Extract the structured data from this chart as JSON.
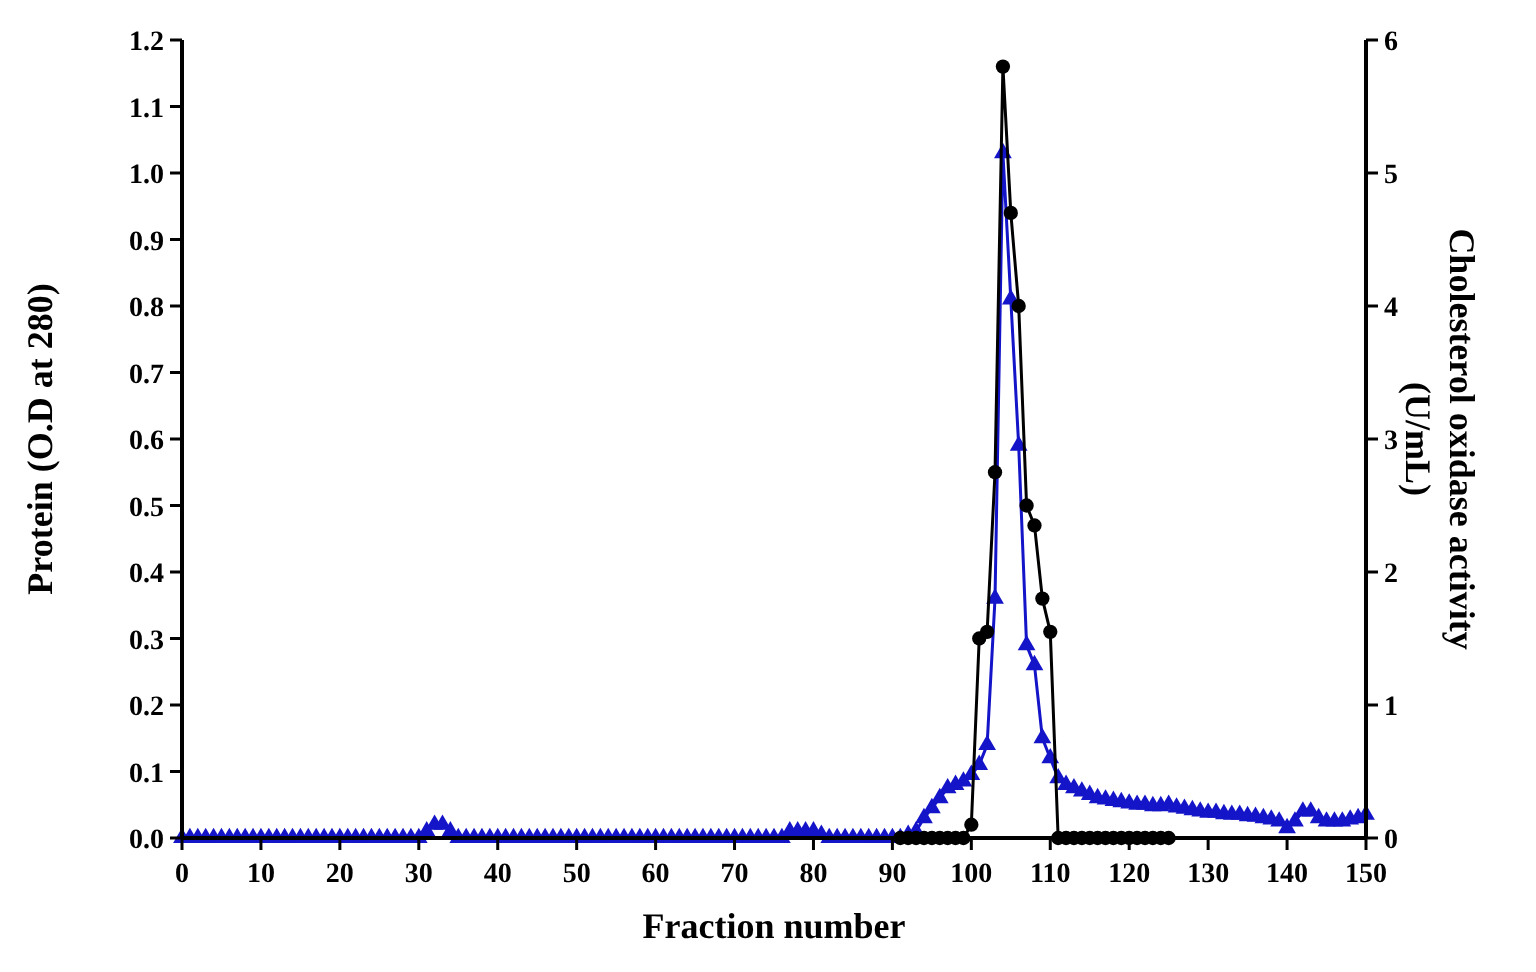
{
  "chart_data": {
    "type": "line",
    "xlabel": "Fraction number",
    "ylabel": "Protein (O.D at 280)",
    "y2label": "Cholesterol oxidase activity (U/mL)",
    "xlim": [
      0,
      150
    ],
    "xticks": [
      0,
      10,
      20,
      30,
      40,
      50,
      60,
      70,
      80,
      90,
      100,
      110,
      120,
      130,
      140,
      150
    ],
    "ylim": [
      0,
      1.2
    ],
    "yticks": [
      {
        "value": 0,
        "label": "0.0"
      },
      0.1,
      0.2,
      0.3,
      0.4,
      0.5,
      0.6,
      0.7,
      0.8,
      0.9,
      {
        "value": 1,
        "label": "1.0"
      },
      1.1,
      1.2
    ],
    "y2lim": [
      0,
      6
    ],
    "y2ticks": [
      0,
      1,
      2,
      3,
      4,
      5,
      6
    ],
    "grid": false,
    "line_style": "solid",
    "series": [
      {
        "color": "#1414c8",
        "marker": "triangle",
        "x": [
          0,
          1,
          2,
          3,
          4,
          5,
          6,
          7,
          8,
          9,
          10,
          11,
          12,
          13,
          14,
          15,
          16,
          17,
          18,
          19,
          20,
          21,
          22,
          23,
          24,
          25,
          26,
          27,
          28,
          29,
          30,
          31,
          32,
          33,
          34,
          35,
          36,
          37,
          38,
          39,
          40,
          41,
          42,
          43,
          44,
          45,
          46,
          47,
          48,
          49,
          50,
          51,
          52,
          53,
          54,
          55,
          56,
          57,
          58,
          59,
          60,
          61,
          62,
          63,
          64,
          65,
          66,
          67,
          68,
          69,
          70,
          71,
          72,
          73,
          74,
          75,
          76,
          77,
          78,
          79,
          80,
          81,
          82,
          83,
          84,
          85,
          86,
          87,
          88,
          89,
          90,
          91,
          92,
          93,
          94,
          95,
          96,
          97,
          98,
          99,
          100,
          101,
          102,
          103,
          104,
          105,
          106,
          107,
          108,
          109,
          110,
          111,
          112,
          113,
          114,
          115,
          116,
          117,
          118,
          119,
          120,
          121,
          122,
          123,
          124,
          125,
          126,
          127,
          128,
          129,
          130,
          131,
          132,
          133,
          134,
          135,
          136,
          137,
          138,
          139,
          140,
          141,
          142,
          143,
          144,
          145,
          146,
          147,
          148,
          149,
          150
        ],
        "values": [
          0,
          0,
          0,
          0,
          0,
          0,
          0,
          0,
          0,
          0,
          0,
          0,
          0,
          0,
          0,
          0,
          0,
          0,
          0,
          0,
          0,
          0,
          0,
          0,
          0,
          0,
          0,
          0,
          0,
          0,
          0,
          0.01,
          0.02,
          0.02,
          0.01,
          0,
          0,
          0,
          0,
          0,
          0,
          0,
          0,
          0,
          0,
          0,
          0,
          0,
          0,
          0,
          0,
          0,
          0,
          0,
          0,
          0,
          0,
          0,
          0,
          0,
          0,
          0,
          0,
          0,
          0,
          0,
          0,
          0,
          0,
          0,
          0,
          0,
          0,
          0,
          0,
          0,
          0,
          0.01,
          0.01,
          0.01,
          0.01,
          0.005,
          0,
          0,
          0,
          0,
          0,
          0,
          0,
          0,
          0,
          0,
          0.005,
          0.01,
          0.03,
          0.045,
          0.06,
          0.075,
          0.08,
          0.085,
          0.095,
          0.11,
          0.14,
          0.36,
          1.03,
          0.81,
          0.59,
          0.29,
          0.26,
          0.15,
          0.12,
          0.09,
          0.08,
          0.075,
          0.07,
          0.065,
          0.06,
          0.058,
          0.056,
          0.054,
          0.052,
          0.05,
          0.05,
          0.048,
          0.048,
          0.05,
          0.046,
          0.044,
          0.042,
          0.04,
          0.038,
          0.038,
          0.036,
          0.035,
          0.035,
          0.033,
          0.032,
          0.03,
          0.028,
          0.025,
          0.015,
          0.025,
          0.04,
          0.04,
          0.03,
          0.025,
          0.025,
          0.025,
          0.028,
          0.03,
          0.035
        ]
      },
      {
        "color": "#000000",
        "marker": "circle",
        "axis": "y2",
        "x": [
          91,
          92,
          93,
          94,
          95,
          96,
          97,
          98,
          99,
          100,
          101,
          102,
          103,
          104,
          105,
          106,
          107,
          108,
          109,
          110,
          111,
          112,
          113,
          114,
          115,
          116,
          117,
          118,
          119,
          120,
          121,
          122,
          123,
          124,
          125
        ],
        "values": [
          0,
          0,
          0,
          0,
          0,
          0,
          0,
          0,
          0,
          0.1,
          1.5,
          1.55,
          2.75,
          5.8,
          4.7,
          4.0,
          2.5,
          2.35,
          1.8,
          1.55,
          0,
          0,
          0,
          0,
          0,
          0,
          0,
          0,
          0,
          0,
          0,
          0,
          0,
          0,
          0
        ]
      }
    ]
  }
}
